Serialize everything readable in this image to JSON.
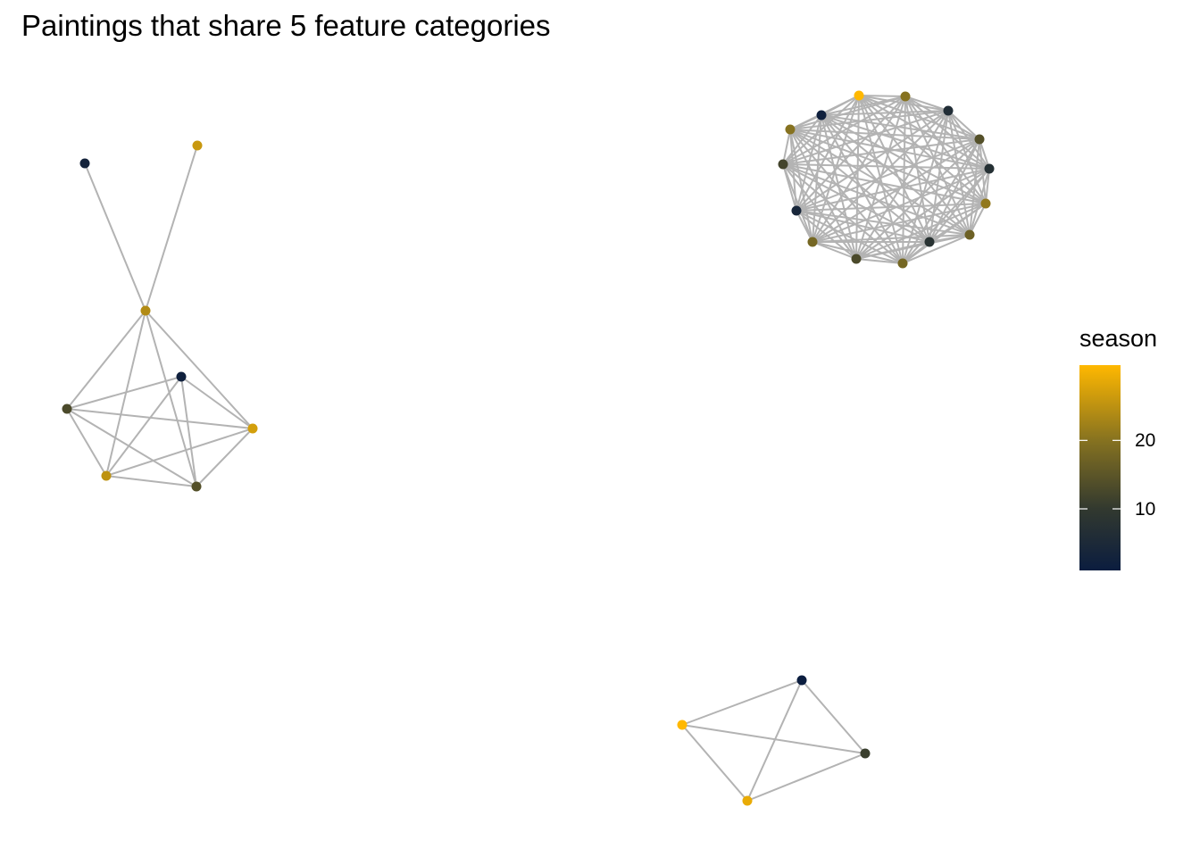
{
  "title": "Paintings that share 5 feature categories",
  "legend": {
    "title": "season",
    "min": 1,
    "max": 31,
    "ticks": [
      {
        "value": 10,
        "label": "10"
      },
      {
        "value": 20,
        "label": "20"
      }
    ],
    "gradient": [
      {
        "value": 1,
        "color": "#0b1d3f"
      },
      {
        "value": 10,
        "color": "#32392f"
      },
      {
        "value": 20,
        "color": "#867220"
      },
      {
        "value": 31,
        "color": "#ffb800"
      }
    ]
  },
  "edge_color": "#b3b3b3"
}
